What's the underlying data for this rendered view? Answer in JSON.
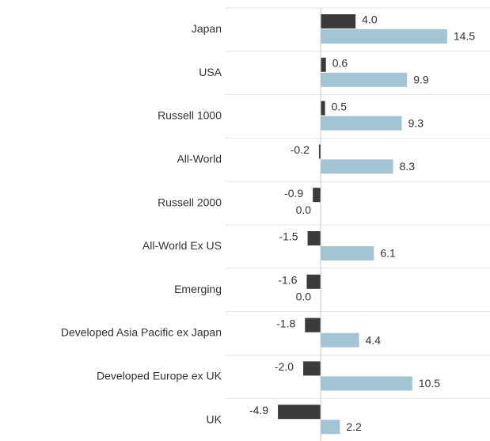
{
  "chart_data": {
    "type": "bar",
    "orientation": "horizontal",
    "categories": [
      "Japan",
      "USA",
      "Russell 1000",
      "All-World",
      "Russell 2000",
      "All-World Ex US",
      "Emerging",
      "Developed Asia Pacific ex Japan",
      "Developed Europe ex UK",
      "UK"
    ],
    "series": [
      {
        "color": "#3b3b3b",
        "values": [
          4.0,
          0.6,
          0.5,
          -0.2,
          -0.9,
          -1.5,
          -1.6,
          -1.8,
          -2.0,
          -4.9
        ],
        "value_labels": [
          "4.0",
          "0.6",
          "0.5",
          "-0.2",
          "-0.9",
          "-1.5",
          "-1.6",
          "-1.8",
          "-2.0",
          "-4.9"
        ]
      },
      {
        "color": "#a3c4d5",
        "values": [
          14.5,
          9.9,
          9.3,
          8.3,
          0.0,
          6.1,
          0.0,
          4.4,
          10.5,
          2.2
        ],
        "value_labels": [
          "14.5",
          "9.9",
          "9.3",
          "8.3",
          "0.0",
          "6.1",
          "0.0",
          "4.4",
          "10.5",
          "2.2"
        ]
      }
    ],
    "xlim": [
      -5,
      19.5
    ],
    "grid": true
  }
}
